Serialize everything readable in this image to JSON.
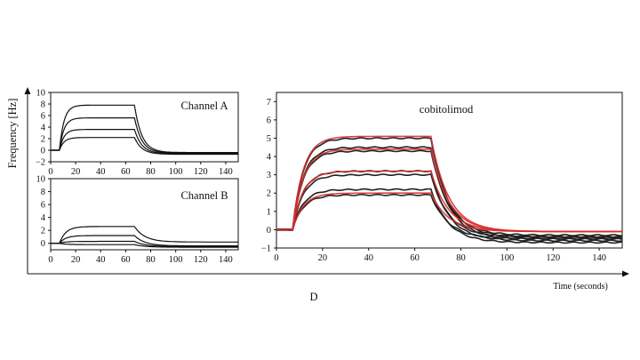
{
  "y_axis_label": "Frequency [Hz]",
  "x_axis_label": "Time (seconds)",
  "cut_letter": "D",
  "chart_data": [
    {
      "type": "line",
      "title": "Channel A",
      "xlim": [
        0,
        150
      ],
      "ylim": [
        -2,
        10
      ],
      "x_ticks": [
        0,
        20,
        40,
        60,
        80,
        100,
        120,
        140
      ],
      "y_ticks": [
        -2,
        0,
        2,
        4,
        6,
        8,
        10
      ],
      "kinetics": {
        "t_on": 7,
        "t_off": 67,
        "k_on": 0.28,
        "k_off": 0.17
      },
      "series": [
        {
          "name": "curve-1",
          "color": "#111111",
          "plateau": 7.8,
          "end": -0.4
        },
        {
          "name": "curve-2",
          "color": "#111111",
          "plateau": 5.6,
          "end": -0.5
        },
        {
          "name": "curve-3",
          "color": "#111111",
          "plateau": 3.6,
          "end": -0.6
        },
        {
          "name": "curve-4",
          "color": "#111111",
          "plateau": 2.2,
          "end": -0.7
        }
      ]
    },
    {
      "type": "line",
      "title": "Channel B",
      "xlim": [
        0,
        150
      ],
      "ylim": [
        -1,
        10
      ],
      "x_ticks": [
        0,
        20,
        40,
        60,
        80,
        100,
        120,
        140
      ],
      "y_ticks": [
        0,
        2,
        4,
        6,
        8,
        10
      ],
      "kinetics": {
        "t_on": 7,
        "t_off": 67,
        "k_on": 0.2,
        "k_off": 0.12
      },
      "series": [
        {
          "name": "curve-1",
          "color": "#111111",
          "plateau": 2.6,
          "end": 0.2
        },
        {
          "name": "curve-2",
          "color": "#111111",
          "plateau": 1.2,
          "end": -0.4
        },
        {
          "name": "curve-3",
          "color": "#111111",
          "plateau": 0.3,
          "end": -0.5
        },
        {
          "name": "curve-4",
          "color": "#111111",
          "plateau": -0.2,
          "end": -0.6
        }
      ]
    },
    {
      "type": "line",
      "title": "cobitolimod",
      "xlabel": "Time (seconds)",
      "xlim": [
        0,
        150
      ],
      "ylim": [
        -1,
        7.5
      ],
      "x_ticks": [
        0,
        20,
        40,
        60,
        80,
        100,
        120,
        140
      ],
      "y_ticks": [
        -1,
        0,
        1,
        2,
        3,
        4,
        5,
        6,
        7
      ],
      "kinetics": {
        "t_on": 7,
        "t_off": 67,
        "k_on": 0.22,
        "k_off": 0.13
      },
      "series": [
        {
          "name": "measured-1",
          "color": "#222222",
          "plateau": 5.0,
          "end": -0.4
        },
        {
          "name": "measured-2",
          "color": "#222222",
          "plateau": 4.5,
          "end": -0.5
        },
        {
          "name": "measured-3",
          "color": "#222222",
          "plateau": 4.3,
          "end": -0.3
        },
        {
          "name": "measured-4",
          "color": "#222222",
          "plateau": 3.2,
          "end": -0.6
        },
        {
          "name": "measured-5",
          "color": "#222222",
          "plateau": 3.0,
          "end": -0.4
        },
        {
          "name": "measured-6",
          "color": "#222222",
          "plateau": 2.2,
          "end": -0.7
        },
        {
          "name": "measured-7",
          "color": "#222222",
          "plateau": 1.9,
          "end": -0.5
        },
        {
          "name": "fit-1",
          "color": "#d62d2d",
          "plateau": 5.1,
          "end": -0.1
        },
        {
          "name": "fit-2",
          "color": "#d62d2d",
          "plateau": 4.4,
          "end": -0.1
        },
        {
          "name": "fit-3",
          "color": "#d62d2d",
          "plateau": 3.2,
          "end": -0.1
        },
        {
          "name": "fit-4",
          "color": "#d62d2d",
          "plateau": 2.0,
          "end": -0.1
        }
      ]
    }
  ]
}
